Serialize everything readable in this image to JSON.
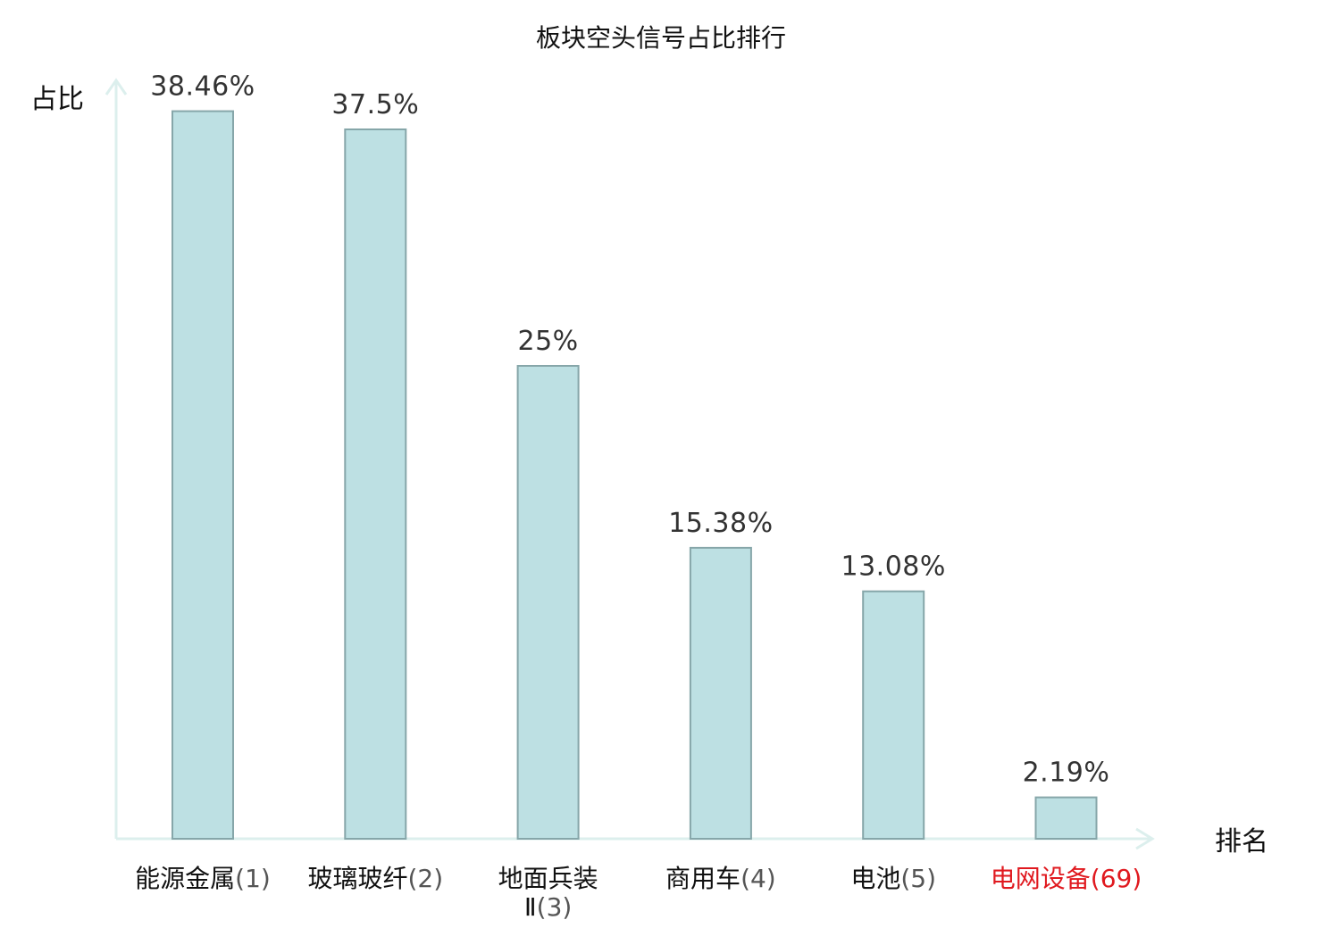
{
  "chart_data": {
    "type": "bar",
    "title": "板块空头信号占比排行",
    "ylabel": "占比",
    "xlabel": "排名",
    "ylim": [
      0,
      40
    ],
    "grid": false,
    "categories": [
      {
        "name": "能源金属",
        "name_lines": [
          "能源金属"
        ],
        "rank": "(1)",
        "highlight": false
      },
      {
        "name": "玻璃玻纤",
        "name_lines": [
          "玻璃玻纤"
        ],
        "rank": "(2)",
        "highlight": false
      },
      {
        "name": "地面兵装Ⅱ",
        "name_lines": [
          "地面兵装",
          "Ⅱ"
        ],
        "rank": "(3)",
        "highlight": false
      },
      {
        "name": "商用车",
        "name_lines": [
          "商用车"
        ],
        "rank": "(4)",
        "highlight": false
      },
      {
        "name": "电池",
        "name_lines": [
          "电池"
        ],
        "rank": "(5)",
        "highlight": false
      },
      {
        "name": "电网设备",
        "name_lines": [
          "电网设备"
        ],
        "rank": "(69)",
        "highlight": true
      }
    ],
    "values": [
      38.46,
      37.5,
      25,
      15.38,
      13.08,
      2.19
    ],
    "value_labels": [
      "38.46%",
      "37.5%",
      "25%",
      "15.38%",
      "13.08%",
      "2.19%"
    ],
    "colors": {
      "bar_fill": "#bde0e3",
      "bar_stroke": "#86a6a9",
      "axis": "#dcefed",
      "text": "#111111",
      "rank_text": "#555555",
      "highlight": "#e0191f"
    }
  }
}
